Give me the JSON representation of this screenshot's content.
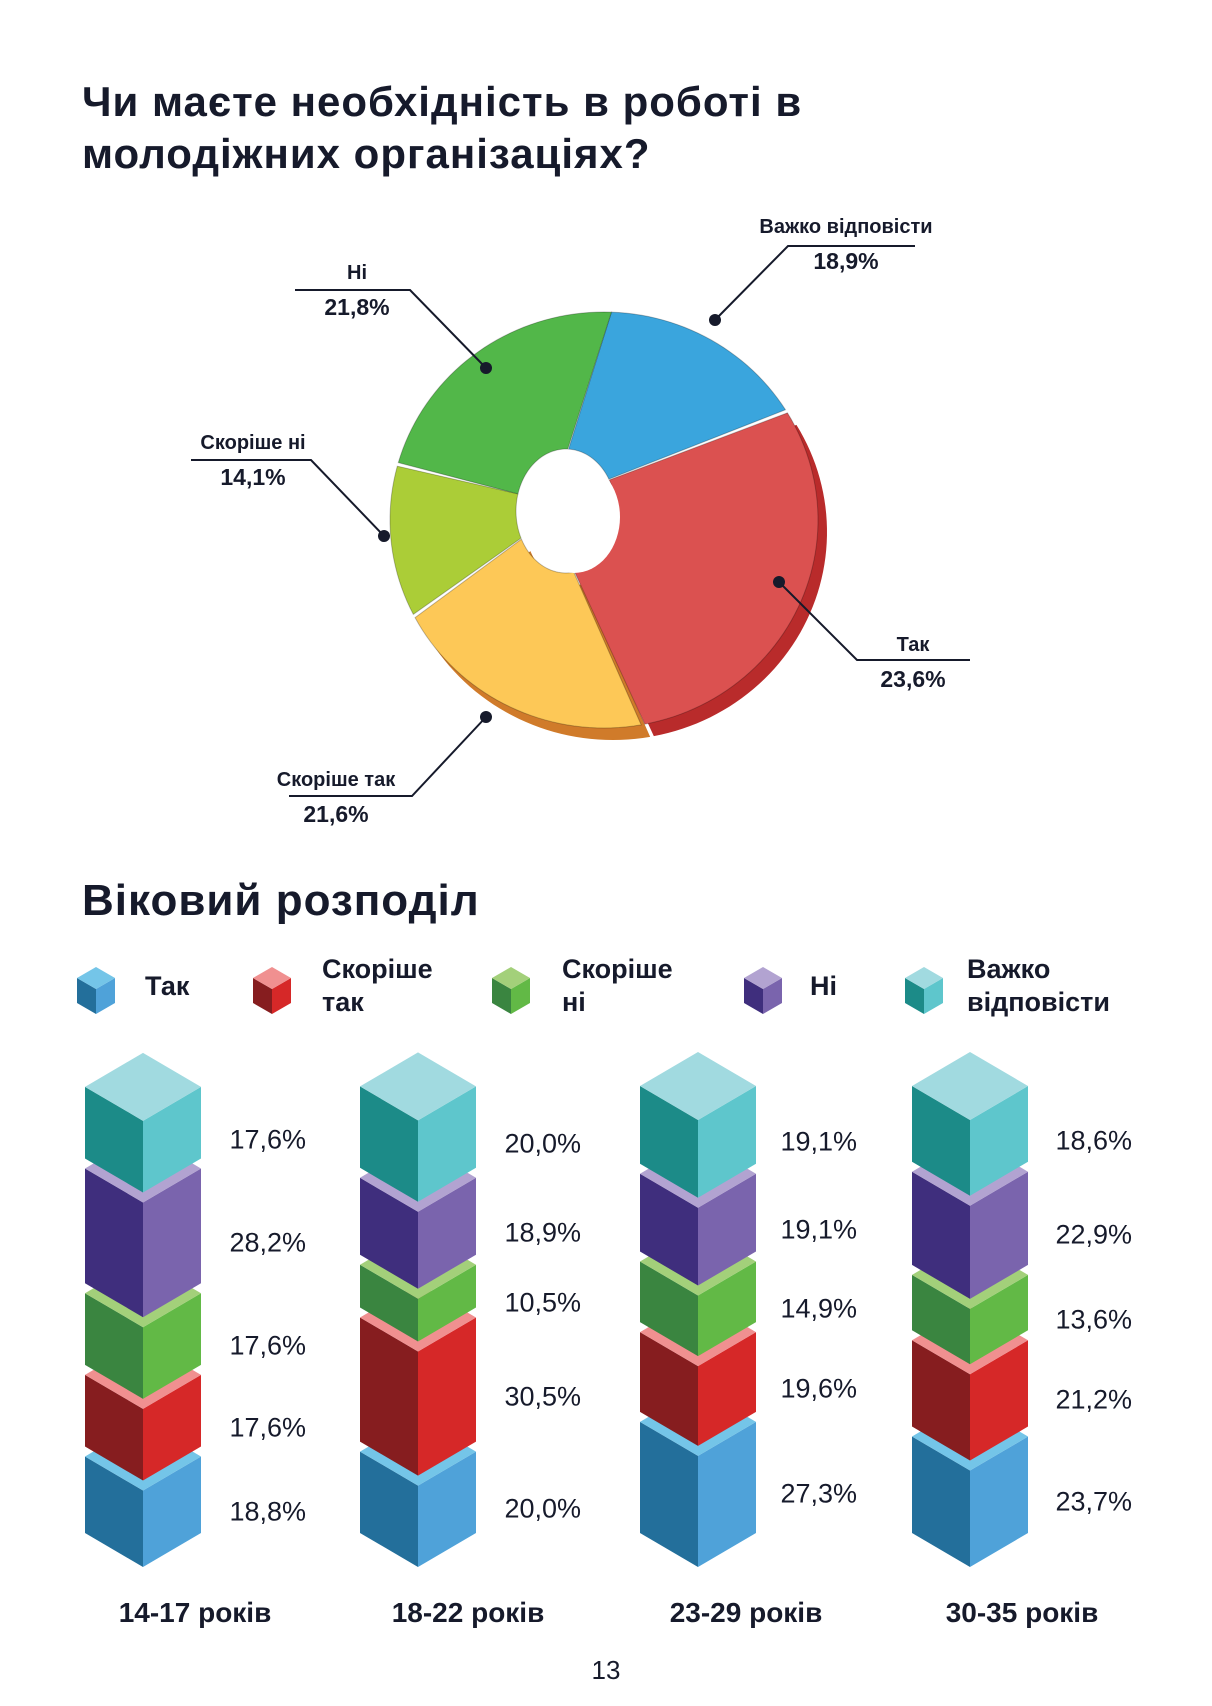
{
  "title": "Чи маєте необхідність в роботі в молодіжних організаціях?",
  "chart_data": [
    {
      "type": "pie",
      "title": "Чи маєте необхідність в роботі в молодіжних організаціях?",
      "categories": [
        "Важко відповісти",
        "Так",
        "Скоріше так",
        "Скоріше ні",
        "Ні"
      ],
      "values": [
        18.9,
        23.6,
        21.6,
        14.1,
        21.8
      ],
      "labels": [
        "18,9%",
        "23,6%",
        "21,6%",
        "14,1%",
        "21,8%"
      ],
      "colors": [
        "#3aa5dd",
        "#db5150",
        "#fdc857",
        "#abcd37",
        "#52b749"
      ],
      "style": "3d-donut"
    },
    {
      "type": "bar",
      "stacked": true,
      "title": "Віковий розподіл",
      "categories": [
        "14-17 років",
        "18-22 років",
        "23-29 років",
        "30-35 років"
      ],
      "legend_position": "top",
      "series": [
        {
          "name": "Так",
          "values": [
            18.8,
            20.0,
            27.3,
            23.7
          ],
          "labels": [
            "18,8%",
            "20,0%",
            "27,3%",
            "23,7%"
          ],
          "colors": {
            "dark": "#236f9b",
            "light": "#4fa2d9",
            "top": "#74c5e8"
          }
        },
        {
          "name": "Скоріше так",
          "values": [
            17.6,
            30.5,
            19.6,
            21.2
          ],
          "labels": [
            "17,6%",
            "30,5%",
            "19,6%",
            "21,2%"
          ],
          "colors": {
            "dark": "#861d1f",
            "light": "#d62828",
            "top": "#f09090"
          }
        },
        {
          "name": "Скоріше ні",
          "values": [
            17.6,
            10.5,
            14.9,
            13.6
          ],
          "labels": [
            "17,6%",
            "10,5%",
            "14,9%",
            "13,6%"
          ],
          "colors": {
            "dark": "#3a8540",
            "light": "#62b946",
            "top": "#a3d07a"
          }
        },
        {
          "name": "Ні",
          "values": [
            28.2,
            18.9,
            19.1,
            22.9
          ],
          "labels": [
            "28,2%",
            "18,9%",
            "19,1%",
            "22,9%"
          ],
          "colors": {
            "dark": "#3f2e7d",
            "light": "#7a64ad",
            "top": "#b2a3d1"
          }
        },
        {
          "name": "Важко відповісти",
          "values": [
            17.6,
            20.0,
            19.1,
            18.6
          ],
          "labels": [
            "17,6%",
            "20,0%",
            "19,1%",
            "18,6%"
          ],
          "colors": {
            "dark": "#1c8b88",
            "light": "#5ec6cc",
            "top": "#a1dae0"
          }
        }
      ]
    }
  ],
  "legend": [
    {
      "line1": "Так",
      "line2": ""
    },
    {
      "line1": "Скоріше",
      "line2": "так"
    },
    {
      "line1": "Скоріше",
      "line2": "ні"
    },
    {
      "line1": "Ні",
      "line2": ""
    },
    {
      "line1": "Важко",
      "line2": "відповісти"
    }
  ],
  "page_number": "13"
}
